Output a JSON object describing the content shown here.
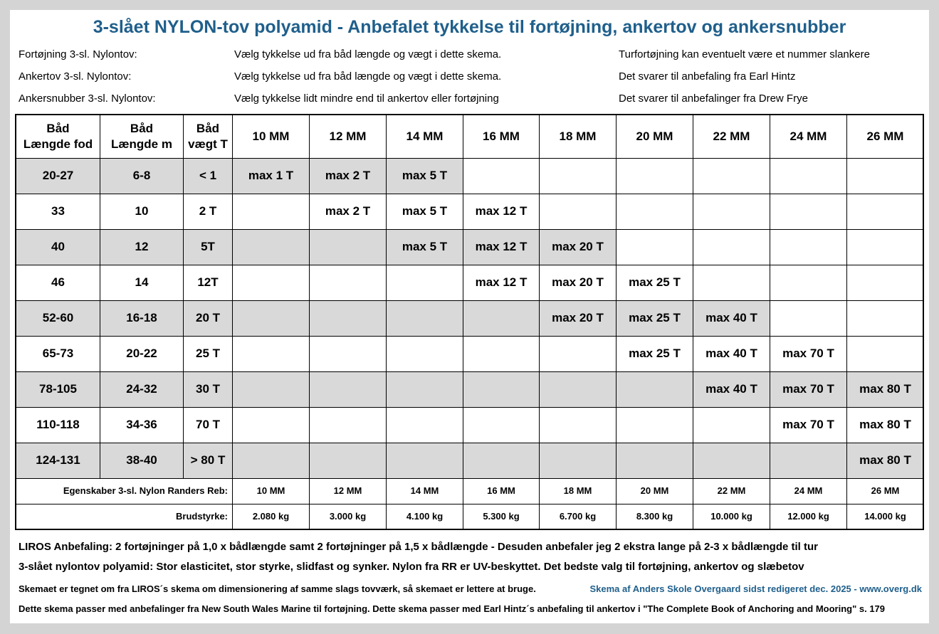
{
  "title": "3-slået NYLON-tov polyamid - Anbefalet tykkelse til fortøjning, ankertov og ankersnubber",
  "info": [
    [
      "Fortøjning 3-sl. Nylontov:",
      "Vælg tykkelse ud fra båd længde og vægt i dette skema.",
      "Turfortøjning kan eventuelt være et nummer slankere"
    ],
    [
      "Ankertov 3-sl. Nylontov:",
      "Vælg tykkelse ud fra båd længde og vægt i dette skema.",
      "Det svarer til anbefaling fra Earl Hintz"
    ],
    [
      "Ankersnubber 3-sl. Nylontov:",
      "Vælg tykkelse lidt mindre end til ankertov eller fortøjning",
      "Det svarer til anbefalinger fra Drew Frye"
    ]
  ],
  "table": {
    "header": [
      "Båd\nLængde fod",
      "Båd\nLængde m",
      "Båd\nvægt T",
      "10 MM",
      "12 MM",
      "14 MM",
      "16 MM",
      "18 MM",
      "20 MM",
      "22 MM",
      "24 MM",
      "26 MM"
    ],
    "rows": [
      [
        "20-27",
        "6-8",
        "< 1",
        "max 1 T",
        "max 2 T",
        "max 5 T",
        null,
        null,
        null,
        null,
        null,
        null
      ],
      [
        "33",
        "10",
        "2 T",
        null,
        "max 2 T",
        "max 5 T",
        "max 12 T",
        null,
        null,
        null,
        null,
        null
      ],
      [
        "40",
        "12",
        "5T",
        null,
        null,
        "max 5 T",
        "max 12 T",
        "max 20 T",
        null,
        null,
        null,
        null
      ],
      [
        "46",
        "14",
        "12T",
        null,
        null,
        null,
        "max 12 T",
        "max 20 T",
        "max 25 T",
        null,
        null,
        null
      ],
      [
        "52-60",
        "16-18",
        "20 T",
        null,
        null,
        null,
        null,
        "max 20 T",
        "max 25 T",
        "max 40 T",
        null,
        null
      ],
      [
        "65-73",
        "20-22",
        "25 T",
        null,
        null,
        null,
        null,
        null,
        "max 25 T",
        "max 40 T",
        "max 70 T",
        null
      ],
      [
        "78-105",
        "24-32",
        "30 T",
        null,
        null,
        null,
        null,
        null,
        null,
        "max 40 T",
        "max 70 T",
        "max 80 T"
      ],
      [
        "110-118",
        "34-36",
        "70 T",
        null,
        null,
        null,
        null,
        null,
        null,
        null,
        "max 70 T",
        "max 80 T"
      ],
      [
        "124-131",
        "38-40",
        "> 80 T",
        null,
        null,
        null,
        null,
        null,
        null,
        null,
        null,
        "max 80 T"
      ]
    ]
  },
  "properties": [
    [
      "Egenskaber 3-sl. Nylon Randers Reb:",
      "10 MM",
      "12 MM",
      "14 MM",
      "16 MM",
      "18 MM",
      "20 MM",
      "22 MM",
      "24 MM",
      "26 MM"
    ],
    [
      "Brudstyrke:",
      "2.080 kg",
      "3.000 kg",
      "4.100 kg",
      "5.300 kg",
      "6.700 kg",
      "8.300 kg",
      "10.000 kg",
      "12.000 kg",
      "14.000 kg"
    ]
  ],
  "footer": {
    "liros": "LIROS Anbefaling: 2 fortøjninger på 1,0 x bådlængde samt 2 fortøjninger på 1,5 x bådlængde - Desuden anbefaler jeg 2 ekstra lange på  2-3 x bådlængde til tur",
    "nylon": "3-slået nylontov polyamid: Stor elasticitet, stor styrke, slidfast og synker. Nylon fra RR er UV-beskyttet. Det bedste valg til fortøjning, ankertov og slæbetov",
    "note": "Skemaet er tegnet om fra LIROS´s skema om dimensionering af samme slags tovværk, så skemaet er lettere at bruge.",
    "credit": "Skema af Anders Skole Overgaard sidst redigeret dec. 2025 - www.overg.dk",
    "sources": "Dette skema passer med anbefalinger fra New South Wales Marine til fortøjning. Dette skema passer med Earl Hintz´s anbefaling til ankertov i \"The Complete Book of Anchoring and Mooring\" s. 179"
  }
}
